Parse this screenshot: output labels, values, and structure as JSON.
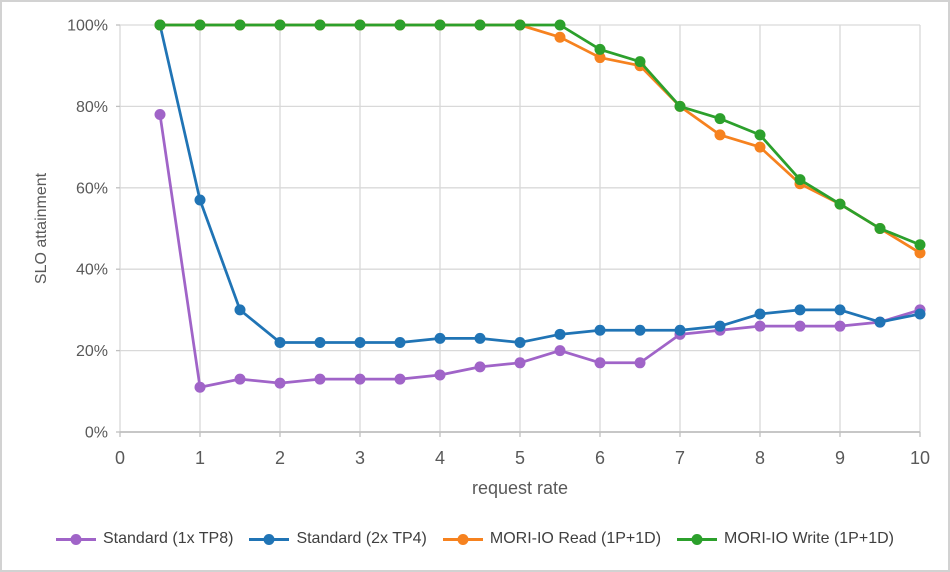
{
  "chart_data": {
    "type": "line",
    "title": "",
    "xlabel": "request rate",
    "ylabel": "SLO attainment",
    "xlim": [
      0,
      10
    ],
    "ylim": [
      0,
      100
    ],
    "grid": true,
    "legend_position": "bottom",
    "x_ticks": [
      0,
      1,
      2,
      3,
      4,
      5,
      6,
      7,
      8,
      9,
      10
    ],
    "y_tick_values": [
      0,
      20,
      40,
      60,
      80,
      100
    ],
    "y_tick_labels": [
      "0%",
      "20%",
      "40%",
      "60%",
      "80%",
      "100%"
    ],
    "x": [
      0.5,
      1,
      1.5,
      2,
      2.5,
      3,
      3.5,
      4,
      4.5,
      5,
      5.5,
      6,
      6.5,
      7,
      7.5,
      8,
      8.5,
      9,
      9.5,
      10
    ],
    "series": [
      {
        "name": "Standard (1x TP8)",
        "color": "#A064C8",
        "values": [
          78,
          11,
          13,
          12,
          13,
          13,
          13,
          14,
          16,
          17,
          20,
          17,
          17,
          24,
          25,
          26,
          26,
          26,
          27,
          30
        ]
      },
      {
        "name": "Standard (2x TP4)",
        "color": "#2074B5",
        "values": [
          100,
          57,
          30,
          22,
          22,
          22,
          22,
          23,
          23,
          22,
          24,
          25,
          25,
          25,
          26,
          29,
          30,
          30,
          27,
          29
        ]
      },
      {
        "name": "MORI-IO Read (1P+1D)",
        "color": "#F6821F",
        "values": [
          100,
          100,
          100,
          100,
          100,
          100,
          100,
          100,
          100,
          100,
          97,
          92,
          90,
          80,
          73,
          70,
          61,
          56,
          50,
          44
        ]
      },
      {
        "name": "MORI-IO Write (1P+1D)",
        "color": "#2CA02C",
        "values": [
          100,
          100,
          100,
          100,
          100,
          100,
          100,
          100,
          100,
          100,
          100,
          94,
          91,
          80,
          77,
          73,
          62,
          56,
          50,
          46
        ]
      }
    ],
    "style": {
      "gridline_color": "#D9D9D9",
      "axis_line_color": "#BFBFBF",
      "tick_label_color": "#595959",
      "legend_text_color": "#3F3F3F"
    }
  }
}
